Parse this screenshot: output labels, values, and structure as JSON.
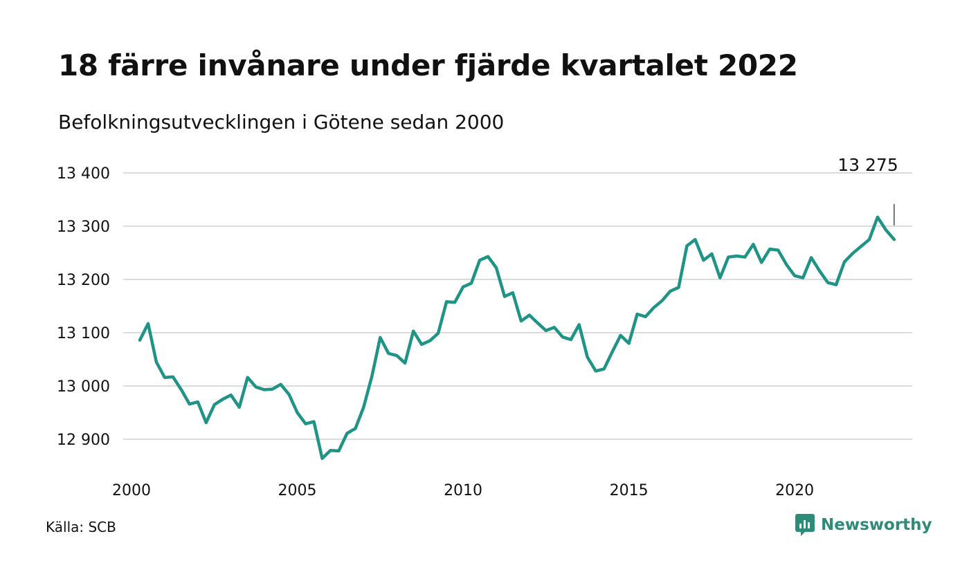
{
  "header": {
    "title": "18 färre invånare under fjärde kvartalet 2022",
    "subtitle": "Befolkningsutvecklingen i Götene sedan 2000"
  },
  "footer": {
    "source": "Källa: SCB",
    "brand": "Newsworthy"
  },
  "colors": {
    "line": "#1f9486",
    "grid": "#dcdcdc",
    "brand": "#2e8b7a"
  },
  "chart_data": {
    "type": "line",
    "title": "18 färre invånare under fjärde kvartalet 2022",
    "subtitle": "Befolkningsutvecklingen i Götene sedan 2000",
    "xlabel": "",
    "ylabel": "",
    "grid": true,
    "x_ticks": [
      2000,
      2005,
      2010,
      2015,
      2020
    ],
    "y_ticks": [
      12900,
      13000,
      13100,
      13200,
      13300,
      13400
    ],
    "y_tick_labels": [
      "12 900",
      "13 000",
      "13 100",
      "13 200",
      "13 300",
      "13 400"
    ],
    "xlim": [
      2000,
      2023.25
    ],
    "ylim": [
      12850,
      13400
    ],
    "annotation": {
      "x": 2023,
      "y": 13275,
      "label": "13 275"
    },
    "series": [
      {
        "x": [
          2000.25,
          2000.5,
          2000.75,
          2001,
          2001.25,
          2001.5,
          2001.75,
          2002,
          2002.25,
          2002.5,
          2002.75,
          2003,
          2003.25,
          2003.5,
          2003.75,
          2004,
          2004.25,
          2004.5,
          2004.75,
          2005,
          2005.25,
          2005.5,
          2005.75,
          2006,
          2006.25,
          2006.5,
          2006.75,
          2007,
          2007.25,
          2007.5,
          2007.75,
          2008,
          2008.25,
          2008.5,
          2008.75,
          2009,
          2009.25,
          2009.5,
          2009.75,
          2010,
          2010.25,
          2010.5,
          2010.75,
          2011,
          2011.25,
          2011.5,
          2011.75,
          2012,
          2012.25,
          2012.5,
          2012.75,
          2013,
          2013.25,
          2013.5,
          2013.75,
          2014,
          2014.25,
          2014.5,
          2014.75,
          2015,
          2015.25,
          2015.5,
          2015.75,
          2016,
          2016.25,
          2016.5,
          2016.75,
          2017,
          2017.25,
          2017.5,
          2017.75,
          2018,
          2018.25,
          2018.5,
          2018.75,
          2019,
          2019.25,
          2019.5,
          2019.75,
          2020,
          2020.25,
          2020.5,
          2020.75,
          2021,
          2021.25,
          2021.5,
          2021.75,
          2022,
          2022.25,
          2022.5,
          2022.75,
          2023
        ],
        "values": [
          13086,
          13117,
          13045,
          13016,
          13017,
          12993,
          12966,
          12970,
          12931,
          12965,
          12975,
          12983,
          12960,
          13016,
          12998,
          12993,
          12994,
          13003,
          12984,
          12950,
          12929,
          12933,
          12864,
          12879,
          12878,
          12911,
          12920,
          12960,
          13018,
          13091,
          13061,
          13057,
          13043,
          13103,
          13078,
          13085,
          13099,
          13158,
          13157,
          13186,
          13193,
          13236,
          13243,
          13222,
          13168,
          13175,
          13122,
          13133,
          13118,
          13104,
          13110,
          13092,
          13087,
          13115,
          13054,
          13028,
          13032,
          13064,
          13095,
          13080,
          13135,
          13130,
          13147,
          13160,
          13178,
          13185,
          13263,
          13275,
          13236,
          13248,
          13203,
          13242,
          13244,
          13242,
          13266,
          13232,
          13257,
          13255,
          13228,
          13207,
          13203,
          13241,
          13216,
          13194,
          13190,
          13233,
          13249,
          13262,
          13275,
          13317,
          13293,
          13275
        ]
      }
    ]
  }
}
